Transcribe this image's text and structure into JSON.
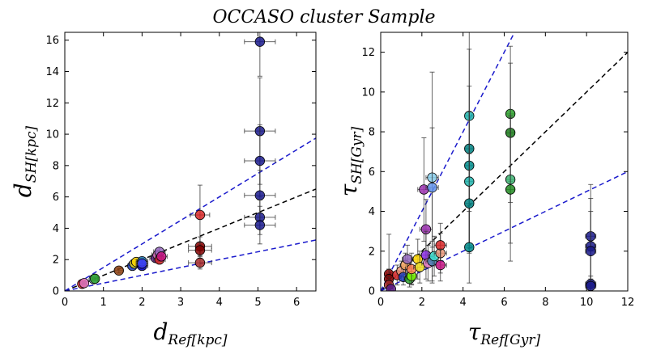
{
  "figure_title": "OCCASO cluster Sample",
  "chart_data": [
    {
      "type": "scatter",
      "id": "distance",
      "xlabel": {
        "main": "d",
        "sub": "Ref[kpc]"
      },
      "ylabel": {
        "main": "d",
        "sub": "SH[kpc]"
      },
      "xlim": [
        0,
        6.5
      ],
      "ylim": [
        0,
        16.5
      ],
      "xticks": [
        0,
        1,
        2,
        3,
        4,
        5,
        6
      ],
      "yticks": [
        0,
        2,
        4,
        6,
        8,
        10,
        12,
        14,
        16
      ],
      "lines": [
        {
          "name": "one-to-one",
          "slope": 1.0,
          "color": "#000000"
        },
        {
          "name": "upper-bound",
          "slope": 1.5,
          "color": "#1a1acc"
        },
        {
          "name": "lower-bound",
          "slope": 0.5,
          "color": "#1a1acc"
        }
      ],
      "points": [
        {
          "x": 0.45,
          "y": 0.45,
          "xerr": 0.05,
          "yerr": 0.08,
          "color": "#d62728"
        },
        {
          "x": 0.5,
          "y": 0.5,
          "xerr": 0.05,
          "yerr": 0.08,
          "color": "#e377c2"
        },
        {
          "x": 0.75,
          "y": 0.75,
          "xerr": 0.07,
          "yerr": 0.1,
          "color": "#9edae5"
        },
        {
          "x": 0.78,
          "y": 0.78,
          "xerr": 0.07,
          "yerr": 0.1,
          "color": "#2ca02c"
        },
        {
          "x": 1.4,
          "y": 1.3,
          "xerr": 0.1,
          "yerr": 0.15,
          "color": "#8c4010"
        },
        {
          "x": 1.75,
          "y": 1.6,
          "xerr": 0.12,
          "yerr": 0.15,
          "color": "#1f3fbf"
        },
        {
          "x": 1.8,
          "y": 1.75,
          "xerr": 0.12,
          "yerr": 0.15,
          "color": "#f0e020"
        },
        {
          "x": 1.85,
          "y": 1.85,
          "xerr": 0.12,
          "yerr": 0.15,
          "color": "#ffd700"
        },
        {
          "x": 2.0,
          "y": 1.6,
          "xerr": 0.15,
          "yerr": 0.2,
          "color": "#0000cc"
        },
        {
          "x": 2.0,
          "y": 1.9,
          "xerr": 0.15,
          "yerr": 0.2,
          "color": "#1f77b4"
        },
        {
          "x": 2.0,
          "y": 1.75,
          "xerr": 0.15,
          "yerr": 0.2,
          "color": "#4040ff"
        },
        {
          "x": 2.35,
          "y": 2.1,
          "xerr": 0.15,
          "yerr": 0.25,
          "color": "#5a1a8a"
        },
        {
          "x": 2.4,
          "y": 2.3,
          "xerr": 0.15,
          "yerr": 0.25,
          "color": "#e377c2"
        },
        {
          "x": 2.45,
          "y": 2.5,
          "xerr": 0.15,
          "yerr": 0.25,
          "color": "#9467bd"
        },
        {
          "x": 2.45,
          "y": 2.0,
          "xerr": 0.15,
          "yerr": 0.25,
          "color": "#d62728"
        },
        {
          "x": 2.5,
          "y": 2.2,
          "xerr": 0.15,
          "yerr": 0.25,
          "color": "#c71585"
        },
        {
          "x": 3.5,
          "y": 4.85,
          "xerr": 0.25,
          "yerr": 1.9,
          "color": "#d62728"
        },
        {
          "x": 3.5,
          "y": 2.85,
          "xerr": 0.3,
          "yerr": 0.6,
          "color": "#8b0000"
        },
        {
          "x": 3.5,
          "y": 2.6,
          "xerr": 0.3,
          "yerr": 0.5,
          "color": "#800000"
        },
        {
          "x": 3.5,
          "y": 1.8,
          "xerr": 0.3,
          "yerr": 0.4,
          "color": "#a52a2a"
        },
        {
          "x": 5.05,
          "y": 15.9,
          "xerr": 0.4,
          "yerr": 2.2,
          "color": "#1a1a8c"
        },
        {
          "x": 5.05,
          "y": 10.2,
          "xerr": 0.4,
          "yerr": 3.4,
          "color": "#1a1a8c"
        },
        {
          "x": 5.05,
          "y": 8.3,
          "xerr": 0.4,
          "yerr": 2.3,
          "color": "#1a1a8c"
        },
        {
          "x": 5.05,
          "y": 6.1,
          "xerr": 0.4,
          "yerr": 1.6,
          "color": "#1a1a8c"
        },
        {
          "x": 5.05,
          "y": 4.7,
          "xerr": 0.4,
          "yerr": 1.1,
          "color": "#1a1a8c"
        },
        {
          "x": 5.05,
          "y": 4.2,
          "xerr": 0.4,
          "yerr": 1.2,
          "color": "#1a1a8c"
        }
      ]
    },
    {
      "type": "scatter",
      "id": "age",
      "xlabel": {
        "main": "τ",
        "sub": "Ref[Gyr]"
      },
      "ylabel": {
        "main": "τ",
        "sub": "SH[Gyr]"
      },
      "xlim": [
        0,
        12
      ],
      "ylim": [
        0,
        13
      ],
      "xticks": [
        0,
        2,
        4,
        6,
        8,
        10,
        12
      ],
      "yticks": [
        0,
        2,
        4,
        6,
        8,
        10,
        12
      ],
      "lines": [
        {
          "name": "one-to-one",
          "slope": 1.0,
          "color": "#000000"
        },
        {
          "name": "upper-bound",
          "slope": 2.0,
          "color": "#1a1acc"
        },
        {
          "name": "lower-bound",
          "slope": 0.5,
          "color": "#1a1acc"
        }
      ],
      "points": [
        {
          "x": 0.4,
          "y": 0.85,
          "xerr": 0.1,
          "yerr": 2.0,
          "color": "#8b0000"
        },
        {
          "x": 0.4,
          "y": 0.6,
          "xerr": 0.1,
          "yerr": 0.5,
          "color": "#800000"
        },
        {
          "x": 0.4,
          "y": 0.3,
          "xerr": 0.1,
          "yerr": 0.4,
          "color": "#a52a2a"
        },
        {
          "x": 0.5,
          "y": 0.1,
          "xerr": 0.1,
          "yerr": 0.2,
          "color": "#5a1a8a"
        },
        {
          "x": 0.8,
          "y": 0.8,
          "xerr": 0.2,
          "yerr": 0.5,
          "color": "#d62728"
        },
        {
          "x": 1.0,
          "y": 1.0,
          "xerr": 0.2,
          "yerr": 0.5,
          "color": "#e9967a"
        },
        {
          "x": 1.1,
          "y": 0.7,
          "xerr": 0.2,
          "yerr": 0.4,
          "color": "#1f3fbf"
        },
        {
          "x": 1.2,
          "y": 1.3,
          "xerr": 0.25,
          "yerr": 0.6,
          "color": "#f4a460"
        },
        {
          "x": 1.3,
          "y": 1.6,
          "xerr": 0.25,
          "yerr": 0.7,
          "color": "#9467bd"
        },
        {
          "x": 1.4,
          "y": 0.6,
          "xerr": 0.25,
          "yerr": 0.4,
          "color": "#2ca02c"
        },
        {
          "x": 1.5,
          "y": 0.75,
          "xerr": 0.25,
          "yerr": 0.4,
          "color": "#7cfc00"
        },
        {
          "x": 1.5,
          "y": 1.1,
          "xerr": 0.3,
          "yerr": 0.8,
          "color": "#ff7f50"
        },
        {
          "x": 1.8,
          "y": 1.6,
          "xerr": 0.3,
          "yerr": 1.0,
          "color": "#ffd700"
        },
        {
          "x": 1.9,
          "y": 1.2,
          "xerr": 0.3,
          "yerr": 0.8,
          "color": "#f0e020"
        },
        {
          "x": 2.1,
          "y": 5.1,
          "xerr": 0.3,
          "yerr": 2.6,
          "color": "#9b30b0"
        },
        {
          "x": 2.2,
          "y": 3.1,
          "xerr": 0.3,
          "yerr": 1.5,
          "color": "#9b30b0"
        },
        {
          "x": 2.2,
          "y": 1.8,
          "xerr": 0.3,
          "yerr": 1.2,
          "color": "#8a2be2"
        },
        {
          "x": 2.3,
          "y": 1.4,
          "xerr": 0.3,
          "yerr": 0.9,
          "color": "#e377c2"
        },
        {
          "x": 2.5,
          "y": 5.7,
          "xerr": 0.3,
          "yerr": 5.3,
          "color": "#87ceeb"
        },
        {
          "x": 2.5,
          "y": 5.2,
          "xerr": 0.3,
          "yerr": 3.0,
          "color": "#6495ed"
        },
        {
          "x": 2.5,
          "y": 1.5,
          "xerr": 0.3,
          "yerr": 1.0,
          "color": "#4682b4"
        },
        {
          "x": 2.6,
          "y": 1.75,
          "xerr": 0.3,
          "yerr": 1.0,
          "color": "#40e0d0"
        },
        {
          "x": 2.9,
          "y": 1.9,
          "xerr": 0.3,
          "yerr": 1.0,
          "color": "#e9967a"
        },
        {
          "x": 2.9,
          "y": 2.3,
          "xerr": 0.3,
          "yerr": 1.1,
          "color": "#d62728"
        },
        {
          "x": 2.9,
          "y": 1.3,
          "xerr": 0.3,
          "yerr": 0.8,
          "color": "#c71585"
        },
        {
          "x": 4.3,
          "y": 8.8,
          "xerr": 0.2,
          "yerr": 4.5,
          "color": "#20b2aa"
        },
        {
          "x": 4.3,
          "y": 7.15,
          "xerr": 0.2,
          "yerr": 5.0,
          "color": "#008080"
        },
        {
          "x": 4.3,
          "y": 6.3,
          "xerr": 0.2,
          "yerr": 4.0,
          "color": "#008b8b"
        },
        {
          "x": 4.3,
          "y": 5.5,
          "xerr": 0.2,
          "yerr": 3.5,
          "color": "#20b2aa"
        },
        {
          "x": 4.3,
          "y": 4.4,
          "xerr": 0.2,
          "yerr": 2.5,
          "color": "#008080"
        },
        {
          "x": 4.3,
          "y": 2.2,
          "xerr": 0.2,
          "yerr": 1.8,
          "color": "#008b8b"
        },
        {
          "x": 6.3,
          "y": 8.9,
          "xerr": 0.2,
          "yerr": 3.4,
          "color": "#2ca02c"
        },
        {
          "x": 6.3,
          "y": 7.95,
          "xerr": 0.2,
          "yerr": 3.5,
          "color": "#1a7a1a"
        },
        {
          "x": 6.3,
          "y": 5.6,
          "xerr": 0.2,
          "yerr": 3.2,
          "color": "#3cb371"
        },
        {
          "x": 6.3,
          "y": 5.1,
          "xerr": 0.2,
          "yerr": 3.6,
          "color": "#228b22"
        },
        {
          "x": 10.2,
          "y": 2.75,
          "xerr": 0.25,
          "yerr": 2.6,
          "color": "#1a1a8c"
        },
        {
          "x": 10.2,
          "y": 2.25,
          "xerr": 0.25,
          "yerr": 2.4,
          "color": "#1a1a8c"
        },
        {
          "x": 10.2,
          "y": 2.0,
          "xerr": 0.25,
          "yerr": 2.0,
          "color": "#1a1a8c"
        },
        {
          "x": 10.2,
          "y": 0.35,
          "xerr": 0.25,
          "yerr": 0.4,
          "color": "#1a1a8c"
        },
        {
          "x": 10.2,
          "y": 0.25,
          "xerr": 0.25,
          "yerr": 0.35,
          "color": "#1a1a8c"
        }
      ]
    }
  ]
}
